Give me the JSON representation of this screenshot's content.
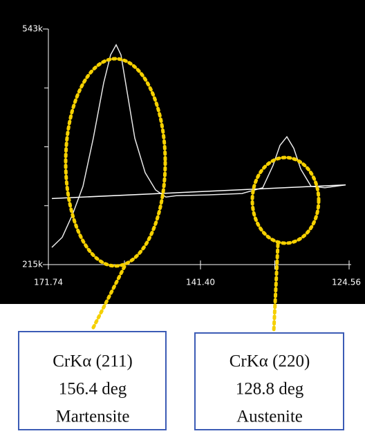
{
  "chart_data": {
    "type": "line",
    "xlim": [
      171.74,
      124.56
    ],
    "xticks": [
      171.74,
      {
        "value": 141.4,
        "label": "141.40"
      },
      124.56
    ],
    "ylim": [
      215,
      543
    ],
    "yticks": [
      {
        "value": 215,
        "label": "215k"
      },
      {
        "value": 543,
        "label": "543k"
      }
    ],
    "series": [
      {
        "color": "#e8e8e8",
        "x": [
          171.05,
          168.98,
          166.91,
          164.84,
          162.78,
          160.71,
          159.33,
          158.22,
          157.26,
          155.88,
          154.5,
          152.43,
          150.36,
          148.3,
          146.23,
          140.62,
          136.7,
          134.35,
          133.18,
          132.39,
          131.61,
          130.83,
          130.04,
          128.87,
          127.3,
          124.95
        ],
        "values": [
          239,
          253,
          285,
          324,
          391,
          468,
          507,
          521,
          507,
          449,
          391,
          343,
          319,
          309,
          311,
          312,
          314,
          322,
          353,
          381,
          393,
          377,
          348,
          324,
          322,
          326
        ]
      },
      {
        "color": "#ffffff",
        "x": [
          171.05,
          124.95
        ],
        "values": [
          307,
          326
        ]
      }
    ],
    "annotations": [
      {
        "lines": [
          "CrKα (211)",
          "156.4 deg",
          "Martensite"
        ]
      },
      {
        "lines": [
          "CrKα (220)",
          "128.8 deg",
          "Austenite"
        ]
      }
    ]
  }
}
